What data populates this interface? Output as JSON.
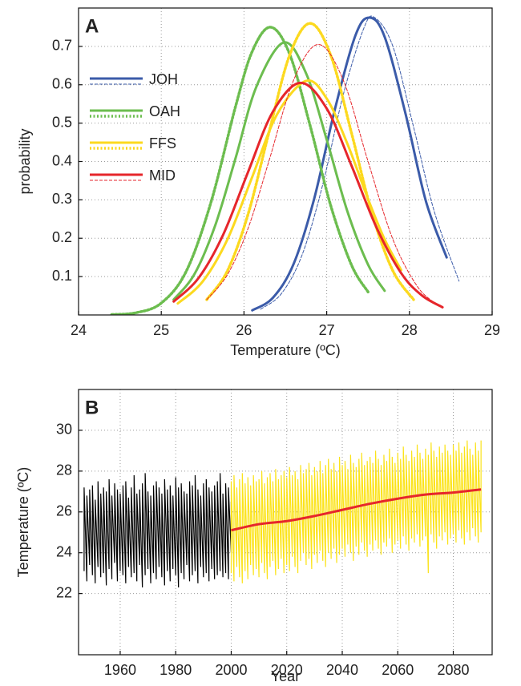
{
  "chart_data": [
    {
      "type": "line",
      "panel_label": "A",
      "x_label": "Temperature (ºC)",
      "y_label": "probability",
      "xlim": [
        24,
        29
      ],
      "xticks": [
        24,
        25,
        26,
        27,
        28,
        29
      ],
      "ylim": [
        0,
        0.8
      ],
      "yticks": [
        0.1,
        0.2,
        0.3,
        0.4,
        0.5,
        0.6,
        0.7
      ],
      "grid": true,
      "legend": "upper-left",
      "series": [
        {
          "name": "JOH",
          "color": "#3b5ba9",
          "lines": [
            {
              "style": "solid",
              "x": [
                26.1,
                26.35,
                26.6,
                26.85,
                27.1,
                27.35,
                27.52,
                27.7,
                27.95,
                28.2,
                28.45
              ],
              "values": [
                0.012,
                0.045,
                0.133,
                0.304,
                0.537,
                0.73,
                0.775,
                0.725,
                0.527,
                0.296,
                0.15
              ]
            },
            {
              "style": "thin-dashed",
              "x": [
                26.2,
                26.45,
                26.7,
                26.95,
                27.2,
                27.45,
                27.58,
                27.8,
                28.05,
                28.3,
                28.6
              ],
              "values": [
                0.015,
                0.055,
                0.155,
                0.338,
                0.574,
                0.748,
                0.775,
                0.7,
                0.49,
                0.27,
                0.088
              ]
            }
          ]
        },
        {
          "name": "OAH",
          "color": "#6cbd4f",
          "lines": [
            {
              "style": "solid",
              "x": [
                25.15,
                25.4,
                25.65,
                25.9,
                26.15,
                26.48,
                26.75,
                27.0,
                27.25,
                27.5,
                27.7
              ],
              "values": [
                0.04,
                0.106,
                0.232,
                0.41,
                0.595,
                0.71,
                0.63,
                0.457,
                0.27,
                0.131,
                0.063
              ]
            },
            {
              "style": "dotted",
              "x": [
                24.4,
                24.7,
                25.0,
                25.3,
                25.6,
                25.9,
                26.1,
                26.32,
                26.55,
                26.8,
                27.05,
                27.3,
                27.5
              ],
              "values": [
                0.001,
                0.006,
                0.031,
                0.113,
                0.293,
                0.545,
                0.687,
                0.75,
                0.681,
                0.493,
                0.284,
                0.13,
                0.06
              ]
            }
          ]
        },
        {
          "name": "FFS",
          "color": "#fcd91f",
          "lines": [
            {
              "style": "solid",
              "x": [
                25.2,
                25.5,
                25.8,
                26.1,
                26.4,
                26.75,
                27.0,
                27.25,
                27.5,
                27.7,
                27.9
              ],
              "values": [
                0.03,
                0.087,
                0.197,
                0.36,
                0.523,
                0.61,
                0.564,
                0.446,
                0.302,
                0.197,
                0.117
              ]
            },
            {
              "style": "dotted",
              "x": [
                25.55,
                25.8,
                26.05,
                26.3,
                26.55,
                26.8,
                27.05,
                27.3,
                27.55,
                27.8,
                28.05
              ],
              "values": [
                0.04,
                0.115,
                0.263,
                0.474,
                0.676,
                0.76,
                0.676,
                0.474,
                0.263,
                0.115,
                0.04
              ]
            }
          ]
        },
        {
          "name": "MID",
          "color": "#e6262b",
          "lines": [
            {
              "style": "solid",
              "x": [
                25.15,
                25.45,
                25.75,
                26.05,
                26.35,
                26.68,
                27.0,
                27.3,
                27.6,
                27.9,
                28.15,
                28.4
              ],
              "values": [
                0.035,
                0.096,
                0.21,
                0.373,
                0.53,
                0.605,
                0.538,
                0.389,
                0.229,
                0.109,
                0.051,
                0.02
              ]
            },
            {
              "style": "thin-dashed",
              "x": [
                25.55,
                25.8,
                26.05,
                26.3,
                26.6,
                26.9,
                27.2,
                27.5,
                27.8,
                28.1,
                28.35
              ],
              "values": [
                0.04,
                0.105,
                0.226,
                0.4,
                0.612,
                0.705,
                0.612,
                0.4,
                0.197,
                0.073,
                0.025
              ]
            }
          ]
        }
      ]
    },
    {
      "type": "line",
      "panel_label": "B",
      "x_label": "Year",
      "y_label": "Temperature (ºC)",
      "xlim": [
        1945,
        2094
      ],
      "xticks": [
        1960,
        1980,
        2000,
        2020,
        2040,
        2060,
        2080
      ],
      "ylim": [
        19,
        32
      ],
      "yticks": [
        22,
        24,
        26,
        28,
        30
      ],
      "grid": true,
      "series": [
        {
          "color": "#000000",
          "x": [
            1947,
            1948,
            1949,
            1950,
            1951,
            1952,
            1953,
            1954,
            1955,
            1956,
            1957,
            1958,
            1959,
            1960,
            1961,
            1962,
            1963,
            1964,
            1965,
            1966,
            1967,
            1968,
            1969,
            1970,
            1971,
            1972,
            1973,
            1974,
            1975,
            1976,
            1977,
            1978,
            1979,
            1980,
            1981,
            1982,
            1983,
            1984,
            1985,
            1986,
            1987,
            1988,
            1989,
            1990,
            1991,
            1992,
            1993,
            1994,
            1995,
            1996,
            1997,
            1998,
            1999,
            2000
          ],
          "high": [
            27.2,
            26.8,
            27.1,
            27.3,
            26.6,
            27.5,
            26.9,
            27.2,
            27.0,
            27.6,
            26.8,
            27.4,
            27.1,
            26.9,
            27.3,
            27.5,
            26.7,
            27.2,
            27.8,
            26.9,
            27.1,
            27.4,
            27.9,
            27.0,
            26.8,
            27.3,
            27.5,
            27.2,
            26.9,
            27.6,
            27.1,
            27.3,
            26.8,
            27.7,
            27.2,
            27.4,
            27.0,
            26.9,
            27.5,
            27.3,
            27.8,
            27.1,
            26.8,
            27.4,
            27.6,
            27.2,
            27.0,
            27.3,
            27.5,
            27.9,
            26.9,
            27.4,
            27.2,
            26.5
          ],
          "low": [
            23.1,
            22.6,
            23.4,
            22.9,
            22.5,
            23.3,
            22.8,
            23.0,
            22.4,
            23.2,
            22.7,
            23.5,
            22.6,
            23.1,
            22.9,
            22.5,
            23.3,
            22.8,
            23.0,
            22.6,
            23.4,
            22.3,
            22.9,
            23.2,
            22.5,
            23.0,
            22.7,
            23.3,
            22.8,
            22.4,
            23.1,
            22.6,
            23.2,
            22.9,
            22.3,
            23.0,
            22.7,
            23.4,
            22.6,
            22.9,
            23.1,
            22.5,
            23.3,
            22.8,
            23.0,
            22.6,
            23.2,
            22.7,
            22.9,
            23.1,
            22.8,
            23.0,
            22.7,
            24.0
          ]
        },
        {
          "color": "#fbe31a",
          "x": [
            2000,
            2001,
            2002,
            2003,
            2004,
            2005,
            2006,
            2007,
            2008,
            2009,
            2010,
            2011,
            2012,
            2013,
            2014,
            2015,
            2016,
            2017,
            2018,
            2019,
            2020,
            2021,
            2022,
            2023,
            2024,
            2025,
            2026,
            2027,
            2028,
            2029,
            2030,
            2031,
            2032,
            2033,
            2034,
            2035,
            2036,
            2037,
            2038,
            2039,
            2040,
            2041,
            2042,
            2043,
            2044,
            2045,
            2046,
            2047,
            2048,
            2049,
            2050,
            2051,
            2052,
            2053,
            2054,
            2055,
            2056,
            2057,
            2058,
            2059,
            2060,
            2061,
            2062,
            2063,
            2064,
            2065,
            2066,
            2067,
            2068,
            2069,
            2070,
            2071,
            2072,
            2073,
            2074,
            2075,
            2076,
            2077,
            2078,
            2079,
            2080,
            2081,
            2082,
            2083,
            2084,
            2085,
            2086,
            2087,
            2088,
            2089,
            2090
          ],
          "high": [
            27.5,
            27.8,
            27.2,
            27.6,
            27.9,
            27.4,
            27.7,
            27.3,
            27.8,
            27.5,
            27.6,
            28.0,
            27.4,
            27.7,
            27.9,
            27.5,
            28.1,
            27.6,
            27.8,
            28.0,
            27.7,
            28.2,
            27.8,
            28.0,
            27.6,
            28.3,
            27.9,
            28.1,
            28.4,
            27.8,
            28.2,
            28.0,
            28.5,
            27.9,
            28.3,
            28.6,
            28.1,
            28.4,
            28.0,
            28.7,
            28.3,
            28.5,
            28.1,
            28.8,
            28.4,
            28.2,
            28.6,
            28.9,
            28.3,
            28.5,
            28.7,
            28.4,
            29.0,
            28.6,
            28.3,
            28.8,
            28.5,
            29.1,
            28.7,
            28.4,
            28.9,
            28.6,
            29.2,
            28.8,
            28.5,
            29.0,
            28.7,
            29.3,
            28.9,
            28.6,
            29.1,
            28.8,
            29.4,
            29.0,
            28.7,
            29.2,
            28.9,
            29.3,
            29.0,
            28.8,
            29.3,
            29.0,
            29.4,
            28.9,
            29.2,
            29.5,
            29.1,
            28.8,
            29.4,
            29.0,
            29.5
          ],
          "low": [
            23.0,
            22.6,
            23.3,
            22.8,
            22.5,
            23.1,
            22.7,
            23.4,
            22.9,
            23.2,
            22.8,
            23.5,
            23.0,
            22.7,
            23.3,
            23.6,
            22.9,
            23.2,
            23.7,
            23.0,
            23.4,
            23.1,
            23.8,
            23.3,
            23.0,
            23.6,
            24.0,
            23.4,
            23.7,
            23.2,
            23.9,
            23.5,
            24.1,
            23.6,
            23.3,
            24.0,
            23.7,
            24.2,
            23.5,
            23.9,
            24.2,
            23.8,
            24.4,
            24.0,
            23.6,
            24.3,
            23.9,
            24.5,
            24.1,
            23.8,
            24.4,
            24.1,
            24.6,
            24.2,
            23.9,
            24.5,
            24.3,
            24.7,
            24.0,
            24.4,
            24.6,
            24.2,
            24.8,
            24.4,
            24.1,
            24.7,
            24.5,
            24.9,
            24.3,
            24.6,
            24.8,
            23.0,
            24.9,
            24.5,
            24.2,
            24.8,
            24.6,
            25.0,
            24.4,
            24.7,
            24.9,
            24.5,
            25.1,
            24.7,
            24.4,
            25.0,
            24.6,
            25.2,
            24.8,
            24.5,
            25.0
          ]
        },
        {
          "color": "#e6262b",
          "x": [
            2000,
            2010,
            2020,
            2030,
            2040,
            2050,
            2060,
            2070,
            2080,
            2090
          ],
          "values": [
            25.1,
            25.4,
            25.55,
            25.8,
            26.1,
            26.4,
            26.65,
            26.85,
            26.95,
            27.1
          ]
        }
      ]
    }
  ]
}
